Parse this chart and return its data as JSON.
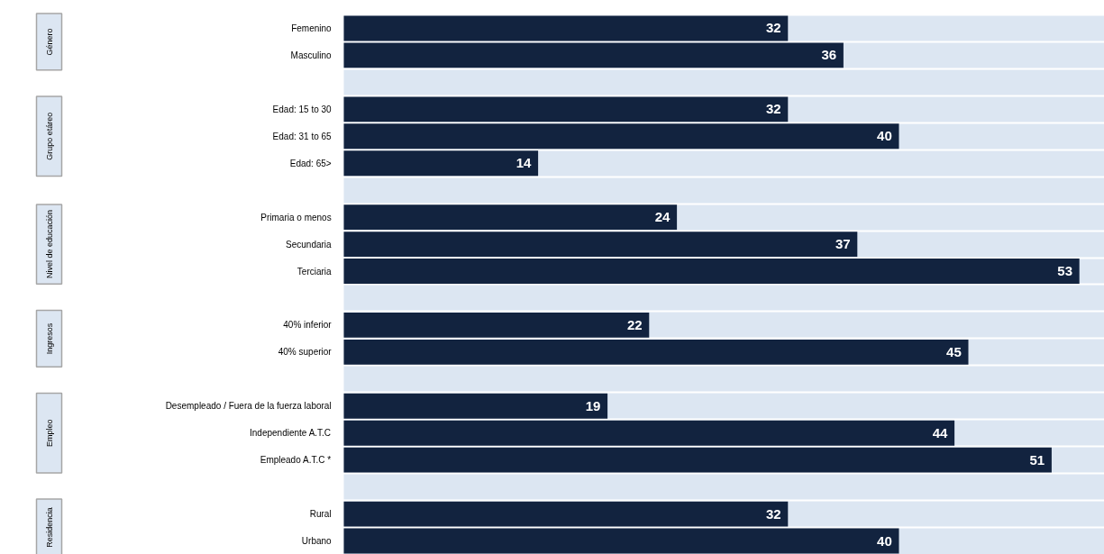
{
  "chart_data": {
    "type": "bar",
    "orientation": "horizontal",
    "data_labels": true,
    "categories": [
      "Femenino",
      "Masculino",
      null,
      "Edad: 15 to 30",
      "Edad: 31 to 65",
      "Edad: 65>",
      null,
      "Primaria o menos",
      "Secundaria",
      "Terciaria",
      null,
      "40% inferior",
      "40% superior",
      null,
      "Desempleado / Fuera de la fuerza laboral",
      "Independiente A.T.C",
      "Empleado A.T.C *",
      null,
      "Rural",
      "Urbano"
    ],
    "values": [
      32,
      36,
      null,
      32,
      40,
      14,
      null,
      24,
      37,
      53,
      null,
      22,
      45,
      null,
      19,
      44,
      51,
      null,
      32,
      40
    ],
    "color": "#12233f",
    "annotations": [
      "Género",
      "Grupo etáreo",
      "Nivel de educación",
      "Ingresos",
      "Empleo",
      "Residencia"
    ]
  }
}
